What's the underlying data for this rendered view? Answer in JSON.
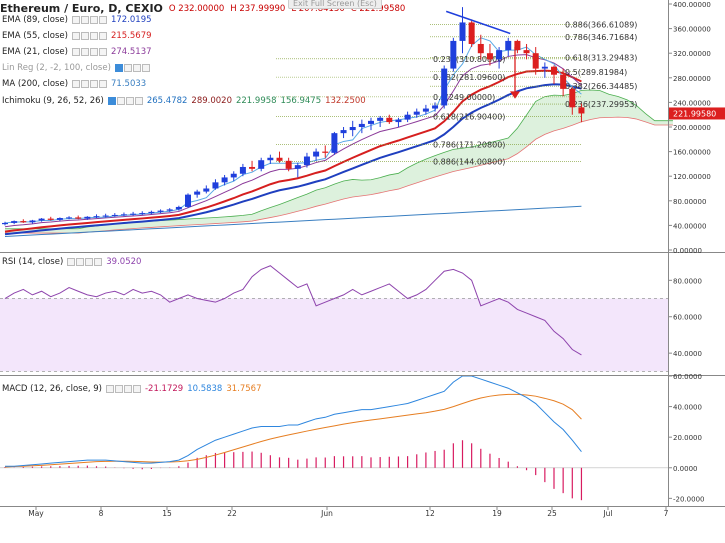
{
  "window": {
    "symbol_title": "Ethereum / Euro, D, CEXIO",
    "exit_fullscreen": "Exit Full Screen (Esc)"
  },
  "ohlc": {
    "o": "O 232.00000",
    "h": "H 237.99990",
    "l": "L 207.84130",
    "c": "C 221.99580"
  },
  "legend_main": [
    {
      "name": "EMA (89, close)",
      "value": "172.0195",
      "color": "#1f3fbf"
    },
    {
      "name": "EMA (55, close)",
      "value": "215.5679",
      "color": "#d61f1f"
    },
    {
      "name": "EMA (21, close)",
      "value": "274.5137",
      "color": "#8b3a9a"
    },
    {
      "name": "Lin Reg (2, -2, 100, close)",
      "value": "",
      "color": "#999999"
    },
    {
      "name": "MA (200, close)",
      "value": "71.5033",
      "color": "#3a7fc1"
    }
  ],
  "ichimoku": {
    "name": "Ichimoku (9, 26, 52, 26)",
    "values": [
      {
        "v": "265.4782",
        "color": "#1f6fbf"
      },
      {
        "v": "289.0020",
        "color": "#8b1a1a"
      },
      {
        "v": "221.9958",
        "color": "#2e8b57"
      },
      {
        "v": "156.9475",
        "color": "#2e8b57"
      },
      {
        "v": "132.2500",
        "color": "#c0392b"
      }
    ]
  },
  "rsi_legend": {
    "name": "RSI (14, close)",
    "value": "39.0520",
    "color": "#8e44ad"
  },
  "macd_legend": {
    "name": "MACD (12, 26, close, 9)",
    "values": [
      {
        "v": "-21.1729",
        "color": "#c2185b"
      },
      {
        "v": "10.5838",
        "color": "#2e86de"
      },
      {
        "v": "31.7567",
        "color": "#e67e22"
      }
    ]
  },
  "price_badge": "221.99580",
  "colors": {
    "up": "#1f3fdc",
    "down": "#dc1f1f",
    "ema89": "#1f3fbf",
    "ema55": "#d61f1f",
    "ema21": "#8b3a9a",
    "ma200": "#3a7fc1",
    "tenkan": "#5aa9e6",
    "rsi": "#8e44ad",
    "macd": "#2e86de",
    "signal": "#e67e22",
    "hist": "#d81b60",
    "fib": "#7a9a2a",
    "cloud": "#d9f0d9"
  },
  "chart_data": [
    {
      "type": "candlestick",
      "title": "Ethereum / Euro, D, CEXIO",
      "x_labels": [
        "May",
        "8",
        "15",
        "22",
        "Jun",
        "12",
        "19",
        "25",
        "Jul",
        "7"
      ],
      "y_ticks": [
        "400.00000",
        "360.00000",
        "320.00000",
        "280.00000",
        "240.00000",
        "200.00000",
        "160.00000",
        "120.00000",
        "80.00000",
        "40.00000",
        "0.00000"
      ],
      "ylim": [
        0,
        400
      ],
      "ohlc": [
        [
          42,
          46,
          40,
          44
        ],
        [
          44,
          48,
          42,
          47
        ],
        [
          47,
          50,
          44,
          45
        ],
        [
          45,
          49,
          43,
          48
        ],
        [
          48,
          52,
          46,
          51
        ],
        [
          51,
          54,
          48,
          49
        ],
        [
          49,
          53,
          47,
          52
        ],
        [
          52,
          55,
          50,
          53
        ],
        [
          53,
          56,
          50,
          51
        ],
        [
          51,
          55,
          49,
          54
        ],
        [
          54,
          58,
          52,
          55
        ],
        [
          55,
          59,
          53,
          56
        ],
        [
          56,
          60,
          54,
          57
        ],
        [
          57,
          61,
          55,
          58
        ],
        [
          58,
          62,
          56,
          59
        ],
        [
          59,
          63,
          57,
          60
        ],
        [
          60,
          64,
          58,
          62
        ],
        [
          62,
          66,
          60,
          64
        ],
        [
          64,
          68,
          62,
          66
        ],
        [
          66,
          72,
          64,
          70
        ],
        [
          70,
          92,
          68,
          90
        ],
        [
          90,
          98,
          85,
          95
        ],
        [
          95,
          105,
          92,
          100
        ],
        [
          100,
          115,
          98,
          110
        ],
        [
          110,
          122,
          105,
          118
        ],
        [
          118,
          128,
          112,
          124
        ],
        [
          124,
          140,
          120,
          135
        ],
        [
          135,
          145,
          128,
          132
        ],
        [
          132,
          150,
          128,
          146
        ],
        [
          146,
          155,
          140,
          150
        ],
        [
          150,
          160,
          142,
          145
        ],
        [
          145,
          150,
          128,
          132
        ],
        [
          132,
          142,
          118,
          138
        ],
        [
          138,
          158,
          134,
          152
        ],
        [
          152,
          165,
          145,
          160
        ],
        [
          160,
          170,
          150,
          158
        ],
        [
          158,
          192,
          155,
          190
        ],
        [
          190,
          200,
          182,
          195
        ],
        [
          195,
          210,
          185,
          200
        ],
        [
          200,
          212,
          190,
          205
        ],
        [
          205,
          215,
          195,
          210
        ],
        [
          210,
          218,
          200,
          215
        ],
        [
          215,
          220,
          205,
          208
        ],
        [
          208,
          215,
          200,
          212
        ],
        [
          212,
          225,
          208,
          220
        ],
        [
          220,
          230,
          215,
          225
        ],
        [
          225,
          236,
          220,
          230
        ],
        [
          230,
          240,
          225,
          235
        ],
        [
          235,
          300,
          230,
          295
        ],
        [
          295,
          345,
          290,
          340
        ],
        [
          340,
          395,
          320,
          370
        ],
        [
          370,
          375,
          330,
          335
        ],
        [
          335,
          350,
          310,
          320
        ],
        [
          320,
          335,
          300,
          310
        ],
        [
          310,
          330,
          295,
          325
        ],
        [
          325,
          345,
          315,
          340
        ],
        [
          340,
          342,
          320,
          325
        ],
        [
          325,
          335,
          310,
          320
        ],
        [
          320,
          330,
          285,
          295
        ],
        [
          295,
          305,
          280,
          298
        ],
        [
          298,
          300,
          270,
          285
        ],
        [
          285,
          295,
          250,
          262
        ],
        [
          262,
          265,
          220,
          232
        ],
        [
          232,
          238,
          207.8,
          222
        ]
      ],
      "series": [
        {
          "name": "EMA 89",
          "last": 172.0195
        },
        {
          "name": "EMA 55",
          "last": 215.5679
        },
        {
          "name": "EMA 21",
          "last": 274.5137
        },
        {
          "name": "MA 200",
          "last": 71.5033
        }
      ],
      "fib_levels": [
        {
          "label": "0.886(366.61089)",
          "value": 366.61089
        },
        {
          "label": "0.786(346.71684)",
          "value": 346.71684
        },
        {
          "label": "0.618(313.29483)",
          "value": 313.29483
        },
        {
          "label": "0.5(289.81984)",
          "value": 289.81984
        },
        {
          "label": "0.382(266.34485)",
          "value": 266.34485
        },
        {
          "label": "0.236(237.29953)",
          "value": 237.29953
        },
        {
          "label": "0.236(310.80800)",
          "value": 310.808
        },
        {
          "label": "0.382(281.09600)",
          "value": 281.096
        },
        {
          "label": "0.5(249.00000)",
          "value": 249.0
        },
        {
          "label": "0.618(216.90400)",
          "value": 216.904
        },
        {
          "label": "0.786(171.20800)",
          "value": 171.208
        },
        {
          "label": "0.886(144.00800)",
          "value": 144.008
        }
      ]
    },
    {
      "type": "line",
      "title": "RSI (14, close)",
      "y_ticks": [
        "80.0000",
        "60.0000",
        "40.0000"
      ],
      "ylim": [
        28,
        95
      ],
      "band": [
        30,
        70
      ],
      "values": [
        70,
        73,
        75,
        72,
        74,
        71,
        73,
        76,
        74,
        72,
        71,
        73,
        74,
        72,
        75,
        73,
        74,
        72,
        68,
        70,
        72,
        70,
        69,
        68,
        70,
        73,
        75,
        82,
        86,
        88,
        84,
        80,
        76,
        78,
        66,
        68,
        70,
        72,
        75,
        72,
        74,
        76,
        78,
        74,
        70,
        72,
        75,
        80,
        85,
        86,
        84,
        80,
        66,
        68,
        70,
        68,
        64,
        62,
        60,
        58,
        52,
        48,
        42,
        39
      ]
    },
    {
      "type": "line",
      "title": "MACD (12, 26, close, 9)",
      "y_ticks": [
        "60.0000",
        "40.0000",
        "20.0000",
        "0.0000",
        "-20.0000"
      ],
      "ylim": [
        -25,
        60
      ],
      "macd": [
        1,
        1,
        1.5,
        2,
        2.5,
        3,
        3.5,
        4,
        4.5,
        5,
        5,
        5,
        4.5,
        4,
        3.5,
        3,
        3,
        3.5,
        4,
        5,
        8,
        12,
        15,
        18,
        20,
        22,
        24,
        26,
        27,
        27,
        27,
        28,
        28,
        30,
        32,
        33,
        35,
        36,
        37,
        38,
        38,
        39,
        40,
        41,
        42,
        44,
        46,
        48,
        50,
        56,
        60,
        60,
        58,
        56,
        54,
        52,
        49,
        46,
        42,
        36,
        30,
        25,
        18,
        10.5
      ],
      "signal": [
        0.5,
        0.8,
        1,
        1.3,
        1.6,
        2,
        2.4,
        2.8,
        3.2,
        3.6,
        4,
        4.2,
        4.3,
        4.3,
        4.2,
        4,
        3.8,
        3.7,
        3.8,
        4,
        4.6,
        5.5,
        6.8,
        8.3,
        10,
        11.8,
        13.6,
        15.4,
        17.2,
        18.8,
        20.2,
        21.5,
        22.7,
        24,
        25.2,
        26.3,
        27.4,
        28.5,
        29.5,
        30.4,
        31.2,
        32,
        32.8,
        33.6,
        34.4,
        35.2,
        36,
        37,
        38.2,
        40,
        42,
        44,
        45.6,
        46.8,
        47.6,
        48,
        48,
        47.6,
        46.8,
        45.4,
        43.8,
        41.6,
        38,
        31.8
      ],
      "hist": [
        0.5,
        0.2,
        0.5,
        0.7,
        0.9,
        1,
        1.1,
        1.2,
        1.3,
        1.4,
        1,
        0.8,
        0.2,
        -0.3,
        -0.7,
        -1,
        -0.8,
        -0.2,
        0.2,
        1,
        3.4,
        6.5,
        8.2,
        9.7,
        10,
        10.2,
        10.4,
        10.6,
        9.8,
        8.2,
        6.8,
        6.5,
        5.3,
        6,
        6.8,
        6.7,
        7.6,
        7.5,
        7.5,
        7.6,
        6.8,
        7,
        7.2,
        7.4,
        7.6,
        8.8,
        10,
        11,
        11.8,
        16,
        18,
        16,
        12.4,
        9.2,
        6.4,
        4,
        1,
        -1.6,
        -4.8,
        -9.4,
        -13.8,
        -16.6,
        -20,
        -21.2
      ]
    }
  ]
}
